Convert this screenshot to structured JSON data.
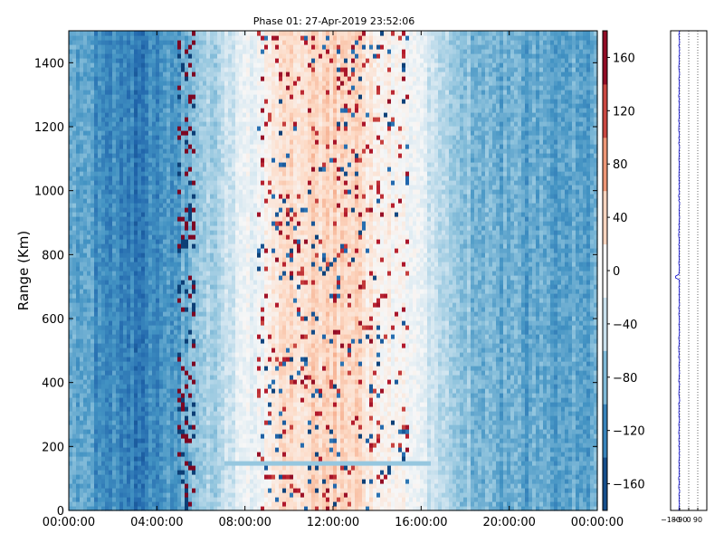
{
  "chart_data": [
    {
      "type": "heatmap",
      "title": "Phase 01: 27-Apr-2019 23:52:06",
      "xlabel": "",
      "ylabel": "Range (Km)",
      "x_ticks": [
        "00:00:00",
        "04:00:00",
        "08:00:00",
        "12:00:00",
        "16:00:00",
        "20:00:00",
        "00:00:00"
      ],
      "x_range_hours": [
        0,
        24
      ],
      "y_ticks": [
        0,
        200,
        400,
        600,
        800,
        1000,
        1200,
        1400
      ],
      "ylim": [
        0,
        1500
      ],
      "colorbar": {
        "colormap": "RdBu_r",
        "range": [
          -180,
          180
        ],
        "ticks": [
          -160,
          -120,
          -80,
          -40,
          0,
          40,
          80,
          120,
          160
        ]
      },
      "approx_column_mean_phase_deg": [
        {
          "hour": 0,
          "value": -95
        },
        {
          "hour": 1,
          "value": -105
        },
        {
          "hour": 2,
          "value": -115
        },
        {
          "hour": 3,
          "value": -125
        },
        {
          "hour": 4,
          "value": -120
        },
        {
          "hour": 5,
          "value": -100
        },
        {
          "hour": 6,
          "value": -75
        },
        {
          "hour": 7,
          "value": -45
        },
        {
          "hour": 8,
          "value": -20
        },
        {
          "hour": 9,
          "value": 5
        },
        {
          "hour": 10,
          "value": 25
        },
        {
          "hour": 11,
          "value": 40
        },
        {
          "hour": 12,
          "value": 40
        },
        {
          "hour": 13,
          "value": 35
        },
        {
          "hour": 14,
          "value": 20
        },
        {
          "hour": 15,
          "value": 5
        },
        {
          "hour": 16,
          "value": -25
        },
        {
          "hour": 17,
          "value": -55
        },
        {
          "hour": 18,
          "value": -75
        },
        {
          "hour": 19,
          "value": -85
        },
        {
          "hour": 20,
          "value": -90
        },
        {
          "hour": 21,
          "value": -95
        },
        {
          "hour": 22,
          "value": -95
        },
        {
          "hour": 23,
          "value": -95
        },
        {
          "hour": 24,
          "value": -95
        }
      ],
      "horizontal_streak": {
        "range_km": 150,
        "from_hour": 7,
        "to_hour": 16.5,
        "value": -70
      }
    },
    {
      "type": "line",
      "xlabel": "",
      "ylabel": "",
      "x_ticks": [
        "−180",
        "−90",
        "0",
        "90"
      ],
      "xlim": [
        -180,
        180
      ],
      "ylim": [
        0,
        1500
      ],
      "grid": "vertical dotted",
      "series_color": "#0000cc",
      "approx_mean_value": -95,
      "spike": {
        "range_km": 730,
        "value": -130
      }
    }
  ],
  "colors": {
    "blue_dark": "#08306b",
    "red_dark": "#67001f",
    "line_blue": "#0000cc"
  }
}
